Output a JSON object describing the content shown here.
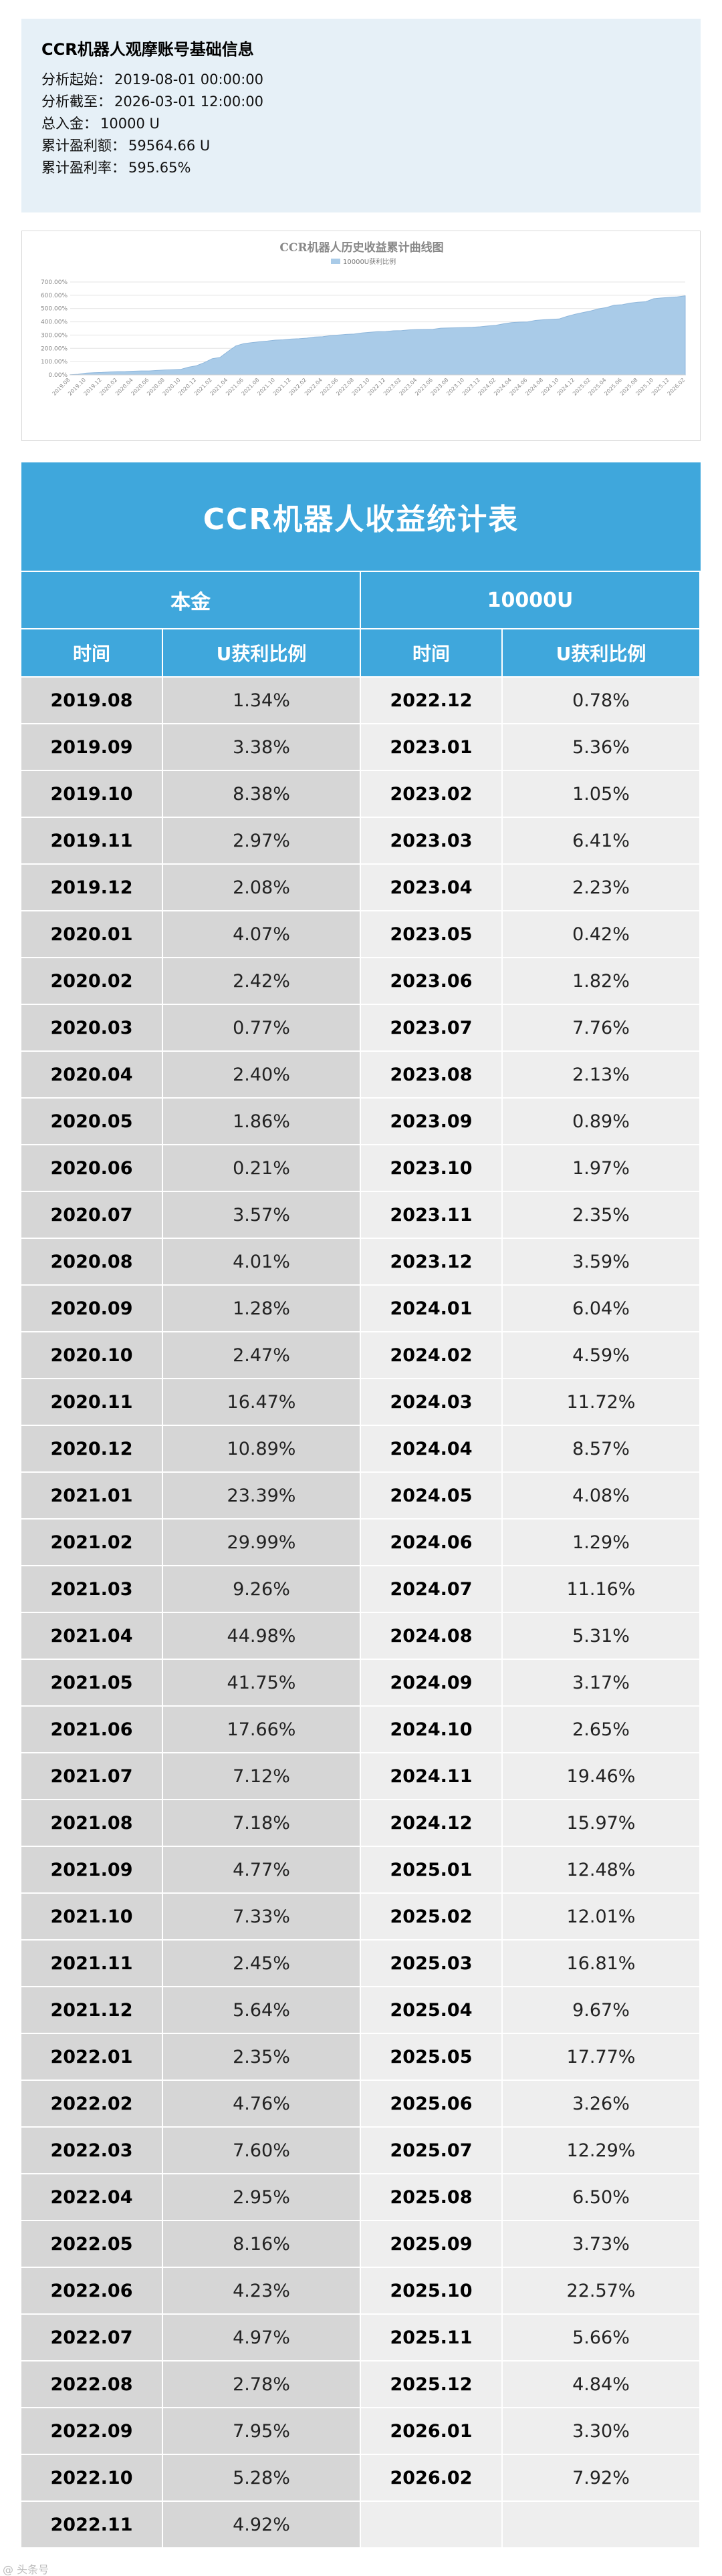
{
  "info": {
    "title": "CCR机器人观摩账号基础信息",
    "rows": [
      {
        "label": "分析起始：",
        "value": "2019-08-01 00:00:00"
      },
      {
        "label": "分析截至：",
        "value": "2026-03-01 12:00:00"
      },
      {
        "label": "总入金：",
        "value": "10000 U"
      },
      {
        "label": "累计盈利额：",
        "value": "59564.66 U"
      },
      {
        "label": "累计盈利率：",
        "value": "595.65%"
      }
    ]
  },
  "chart_data": {
    "type": "area",
    "title": "CCR机器人历史收益累计曲线图",
    "legend": "10000U获利比例",
    "legend_position": "top",
    "ylim": [
      0,
      700
    ],
    "y_ticks": [
      "0.00%",
      "100.00%",
      "200.00%",
      "300.00%",
      "400.00%",
      "500.00%",
      "600.00%",
      "700.00%"
    ],
    "x": [
      "2019.08",
      "2019.09",
      "2019.10",
      "2019.11",
      "2019.12",
      "2020.01",
      "2020.02",
      "2020.03",
      "2020.04",
      "2020.05",
      "2020.06",
      "2020.07",
      "2020.08",
      "2020.09",
      "2020.10",
      "2020.11",
      "2020.12",
      "2021.01",
      "2021.02",
      "2021.03",
      "2021.04",
      "2021.05",
      "2021.06",
      "2021.07",
      "2021.08",
      "2021.09",
      "2021.10",
      "2021.11",
      "2021.12",
      "2022.01",
      "2022.02",
      "2022.03",
      "2022.04",
      "2022.05",
      "2022.06",
      "2022.07",
      "2022.08",
      "2022.09",
      "2022.10",
      "2022.11",
      "2022.12",
      "2023.01",
      "2023.02",
      "2023.03",
      "2023.04",
      "2023.05",
      "2023.06",
      "2023.07",
      "2023.08",
      "2023.09",
      "2023.10",
      "2023.11",
      "2023.12",
      "2024.01",
      "2024.02",
      "2024.03",
      "2024.04",
      "2024.05",
      "2024.06",
      "2024.07",
      "2024.08",
      "2024.09",
      "2024.10",
      "2024.11",
      "2024.12",
      "2025.01",
      "2025.02",
      "2025.03",
      "2025.04",
      "2025.05",
      "2025.06",
      "2025.07",
      "2025.08",
      "2025.09",
      "2025.10",
      "2025.11",
      "2025.12",
      "2026.01",
      "2026.02"
    ],
    "series": [
      {
        "name": "10000U获利比例",
        "values": [
          1.34,
          3.38,
          8.38,
          2.97,
          2.08,
          4.07,
          2.42,
          0.77,
          2.4,
          1.86,
          0.21,
          3.57,
          4.01,
          1.28,
          2.47,
          16.47,
          10.89,
          23.39,
          29.99,
          9.26,
          44.98,
          41.75,
          17.66,
          7.12,
          7.18,
          4.77,
          7.33,
          2.45,
          5.64,
          2.35,
          4.76,
          7.6,
          2.95,
          8.16,
          4.23,
          4.97,
          2.78,
          7.95,
          5.28,
          4.92,
          0.78,
          5.36,
          1.05,
          6.41,
          2.23,
          0.42,
          1.82,
          7.76,
          2.13,
          0.89,
          1.97,
          2.35,
          3.59,
          6.04,
          4.59,
          11.72,
          8.57,
          4.08,
          1.29,
          11.16,
          5.31,
          3.17,
          2.65,
          19.46,
          15.97,
          12.48,
          12.01,
          16.81,
          9.67,
          17.77,
          3.26,
          12.29,
          6.5,
          3.73,
          22.57,
          5.66,
          4.84,
          3.3,
          7.92
        ],
        "cumulative": true
      }
    ],
    "color": "#a9cbe8",
    "grid": true
  },
  "table": {
    "title": "CCR机器人收益统计表",
    "principal_label": "本金",
    "principal_value": "10000U",
    "col_time": "时间",
    "col_ratio": "U获利比例",
    "left": [
      [
        "2019.08",
        "1.34%"
      ],
      [
        "2019.09",
        "3.38%"
      ],
      [
        "2019.10",
        "8.38%"
      ],
      [
        "2019.11",
        "2.97%"
      ],
      [
        "2019.12",
        "2.08%"
      ],
      [
        "2020.01",
        "4.07%"
      ],
      [
        "2020.02",
        "2.42%"
      ],
      [
        "2020.03",
        "0.77%"
      ],
      [
        "2020.04",
        "2.40%"
      ],
      [
        "2020.05",
        "1.86%"
      ],
      [
        "2020.06",
        "0.21%"
      ],
      [
        "2020.07",
        "3.57%"
      ],
      [
        "2020.08",
        "4.01%"
      ],
      [
        "2020.09",
        "1.28%"
      ],
      [
        "2020.10",
        "2.47%"
      ],
      [
        "2020.11",
        "16.47%"
      ],
      [
        "2020.12",
        "10.89%"
      ],
      [
        "2021.01",
        "23.39%"
      ],
      [
        "2021.02",
        "29.99%"
      ],
      [
        "2021.03",
        "9.26%"
      ],
      [
        "2021.04",
        "44.98%"
      ],
      [
        "2021.05",
        "41.75%"
      ],
      [
        "2021.06",
        "17.66%"
      ],
      [
        "2021.07",
        "7.12%"
      ],
      [
        "2021.08",
        "7.18%"
      ],
      [
        "2021.09",
        "4.77%"
      ],
      [
        "2021.10",
        "7.33%"
      ],
      [
        "2021.11",
        "2.45%"
      ],
      [
        "2021.12",
        "5.64%"
      ],
      [
        "2022.01",
        "2.35%"
      ],
      [
        "2022.02",
        "4.76%"
      ],
      [
        "2022.03",
        "7.60%"
      ],
      [
        "2022.04",
        "2.95%"
      ],
      [
        "2022.05",
        "8.16%"
      ],
      [
        "2022.06",
        "4.23%"
      ],
      [
        "2022.07",
        "4.97%"
      ],
      [
        "2022.08",
        "2.78%"
      ],
      [
        "2022.09",
        "7.95%"
      ],
      [
        "2022.10",
        "5.28%"
      ],
      [
        "2022.11",
        "4.92%"
      ]
    ],
    "right": [
      [
        "2022.12",
        "0.78%"
      ],
      [
        "2023.01",
        "5.36%"
      ],
      [
        "2023.02",
        "1.05%"
      ],
      [
        "2023.03",
        "6.41%"
      ],
      [
        "2023.04",
        "2.23%"
      ],
      [
        "2023.05",
        "0.42%"
      ],
      [
        "2023.06",
        "1.82%"
      ],
      [
        "2023.07",
        "7.76%"
      ],
      [
        "2023.08",
        "2.13%"
      ],
      [
        "2023.09",
        "0.89%"
      ],
      [
        "2023.10",
        "1.97%"
      ],
      [
        "2023.11",
        "2.35%"
      ],
      [
        "2023.12",
        "3.59%"
      ],
      [
        "2024.01",
        "6.04%"
      ],
      [
        "2024.02",
        "4.59%"
      ],
      [
        "2024.03",
        "11.72%"
      ],
      [
        "2024.04",
        "8.57%"
      ],
      [
        "2024.05",
        "4.08%"
      ],
      [
        "2024.06",
        "1.29%"
      ],
      [
        "2024.07",
        "11.16%"
      ],
      [
        "2024.08",
        "5.31%"
      ],
      [
        "2024.09",
        "3.17%"
      ],
      [
        "2024.10",
        "2.65%"
      ],
      [
        "2024.11",
        "19.46%"
      ],
      [
        "2024.12",
        "15.97%"
      ],
      [
        "2025.01",
        "12.48%"
      ],
      [
        "2025.02",
        "12.01%"
      ],
      [
        "2025.03",
        "16.81%"
      ],
      [
        "2025.04",
        "9.67%"
      ],
      [
        "2025.05",
        "17.77%"
      ],
      [
        "2025.06",
        "3.26%"
      ],
      [
        "2025.07",
        "12.29%"
      ],
      [
        "2025.08",
        "6.50%"
      ],
      [
        "2025.09",
        "3.73%"
      ],
      [
        "2025.10",
        "22.57%"
      ],
      [
        "2025.11",
        "5.66%"
      ],
      [
        "2025.12",
        "4.84%"
      ],
      [
        "2026.01",
        "3.30%"
      ],
      [
        "2026.02",
        "7.92%"
      ],
      [
        "",
        ""
      ]
    ]
  },
  "watermark": "@ 头条号"
}
